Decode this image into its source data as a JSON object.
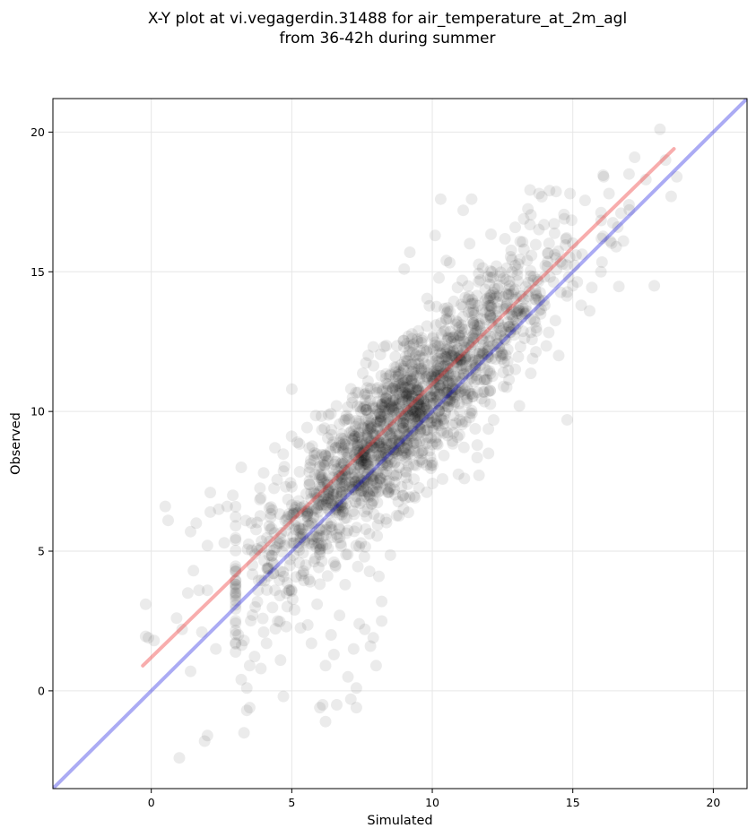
{
  "chart_data": {
    "type": "scatter",
    "title_line1": "X-Y plot at vi.vegagerdin.31488 for air_temperature_at_2m_agl",
    "title_line2": "from 36-42h during summer",
    "xlabel": "Simulated",
    "ylabel": "Observed",
    "xlim": [
      -3.5,
      21.2
    ],
    "ylim": [
      -3.5,
      21.2
    ],
    "xticks": [
      0,
      5,
      10,
      15,
      20
    ],
    "yticks": [
      0,
      5,
      10,
      15,
      20
    ],
    "grid": true,
    "point_color": "#000000",
    "identity_line": {
      "color": "#0000dd",
      "x": [
        -3.5,
        21.2
      ],
      "y": [
        -3.5,
        21.2
      ]
    },
    "fit_line": {
      "color": "#ee3333",
      "x": [
        -0.3,
        18.6
      ],
      "y": [
        0.9,
        19.4
      ]
    },
    "cluster": {
      "n": 1800,
      "x_mean": 9.0,
      "x_sd": 2.7,
      "y_offset": 0.75,
      "y_sd": 1.35
    },
    "points": [
      [
        -0.2,
        1.95
      ],
      [
        -0.2,
        3.1
      ],
      [
        -0.1,
        1.9
      ],
      [
        0.1,
        1.8
      ],
      [
        0.5,
        6.6
      ],
      [
        0.6,
        6.1
      ],
      [
        0.9,
        2.6
      ],
      [
        1.0,
        -2.4
      ],
      [
        1.1,
        2.2
      ],
      [
        1.3,
        3.5
      ],
      [
        1.4,
        0.7
      ],
      [
        1.4,
        5.7
      ],
      [
        1.5,
        4.3
      ],
      [
        1.6,
        6.0
      ],
      [
        1.7,
        3.6
      ],
      [
        1.8,
        2.1
      ],
      [
        1.9,
        -1.8
      ],
      [
        2.0,
        5.2
      ],
      [
        2.0,
        -1.6
      ],
      [
        2.0,
        3.6
      ],
      [
        2.1,
        7.1
      ],
      [
        2.1,
        6.4
      ],
      [
        2.3,
        1.5
      ],
      [
        2.4,
        6.5
      ],
      [
        2.6,
        5.3
      ],
      [
        2.7,
        6.6
      ],
      [
        2.9,
        7.0
      ],
      [
        3.0,
        5.4
      ],
      [
        3.1,
        2.0
      ],
      [
        3.2,
        0.4
      ],
      [
        3.2,
        8.0
      ],
      [
        3.3,
        -1.5
      ],
      [
        3.3,
        1.8
      ],
      [
        3.4,
        0.1
      ],
      [
        3.4,
        -0.7
      ],
      [
        3.5,
        0.9
      ],
      [
        3.5,
        -0.6
      ],
      [
        3.6,
        4.5
      ],
      [
        3.7,
        3.0
      ],
      [
        3.8,
        3.6
      ],
      [
        3.9,
        0.8
      ],
      [
        3.9,
        6.9
      ],
      [
        4.0,
        2.1
      ],
      [
        4.0,
        7.8
      ],
      [
        4.1,
        1.7
      ],
      [
        4.3,
        4.6
      ],
      [
        4.4,
        3.6
      ],
      [
        4.4,
        8.7
      ],
      [
        4.5,
        2.5
      ],
      [
        4.6,
        1.1
      ],
      [
        4.7,
        -0.2
      ],
      [
        4.8,
        2.3
      ],
      [
        4.9,
        3.6
      ],
      [
        5.0,
        10.8
      ],
      [
        5.0,
        7.3
      ],
      [
        5.1,
        2.9
      ],
      [
        5.3,
        5.5
      ],
      [
        5.5,
        4.5
      ],
      [
        5.7,
        1.7
      ],
      [
        5.8,
        6.5
      ],
      [
        5.9,
        3.1
      ],
      [
        6.0,
        -0.6
      ],
      [
        6.1,
        -0.5
      ],
      [
        6.2,
        0.9
      ],
      [
        6.2,
        -1.1
      ],
      [
        6.4,
        2.0
      ],
      [
        6.5,
        1.3
      ],
      [
        6.6,
        5.6
      ],
      [
        6.6,
        -0.5
      ],
      [
        6.7,
        2.7
      ],
      [
        6.9,
        3.8
      ],
      [
        7.0,
        0.5
      ],
      [
        7.1,
        -0.3
      ],
      [
        7.2,
        1.5
      ],
      [
        7.3,
        0.1
      ],
      [
        7.3,
        -0.6
      ],
      [
        7.4,
        2.4
      ],
      [
        7.6,
        2.2
      ],
      [
        7.8,
        1.6
      ],
      [
        7.9,
        1.9
      ],
      [
        8.0,
        0.9
      ],
      [
        8.1,
        4.1
      ],
      [
        8.2,
        3.2
      ],
      [
        8.2,
        2.5
      ],
      [
        9.0,
        15.1
      ],
      [
        9.2,
        15.7
      ],
      [
        10.1,
        16.3
      ],
      [
        10.3,
        17.6
      ],
      [
        10.5,
        15.4
      ],
      [
        11.1,
        17.2
      ],
      [
        11.4,
        17.6
      ],
      [
        11.6,
        8.8
      ],
      [
        12.0,
        8.5
      ],
      [
        13.1,
        10.2
      ],
      [
        13.8,
        17.8
      ],
      [
        14.4,
        15.5
      ],
      [
        14.5,
        12.0
      ],
      [
        14.8,
        9.7
      ],
      [
        14.9,
        17.8
      ],
      [
        15.3,
        13.8
      ],
      [
        15.6,
        13.6
      ],
      [
        16.1,
        18.4
      ],
      [
        16.6,
        16.6
      ],
      [
        16.8,
        16.1
      ],
      [
        17.0,
        18.5
      ],
      [
        17.2,
        19.1
      ],
      [
        17.6,
        18.3
      ],
      [
        17.9,
        14.5
      ],
      [
        18.1,
        20.1
      ],
      [
        18.3,
        19.0
      ],
      [
        18.5,
        17.7
      ],
      [
        18.7,
        18.4
      ],
      [
        17.0,
        17.4
      ],
      [
        16.0,
        15.0
      ],
      [
        15.0,
        14.5
      ],
      [
        14.0,
        13.8
      ]
    ]
  }
}
